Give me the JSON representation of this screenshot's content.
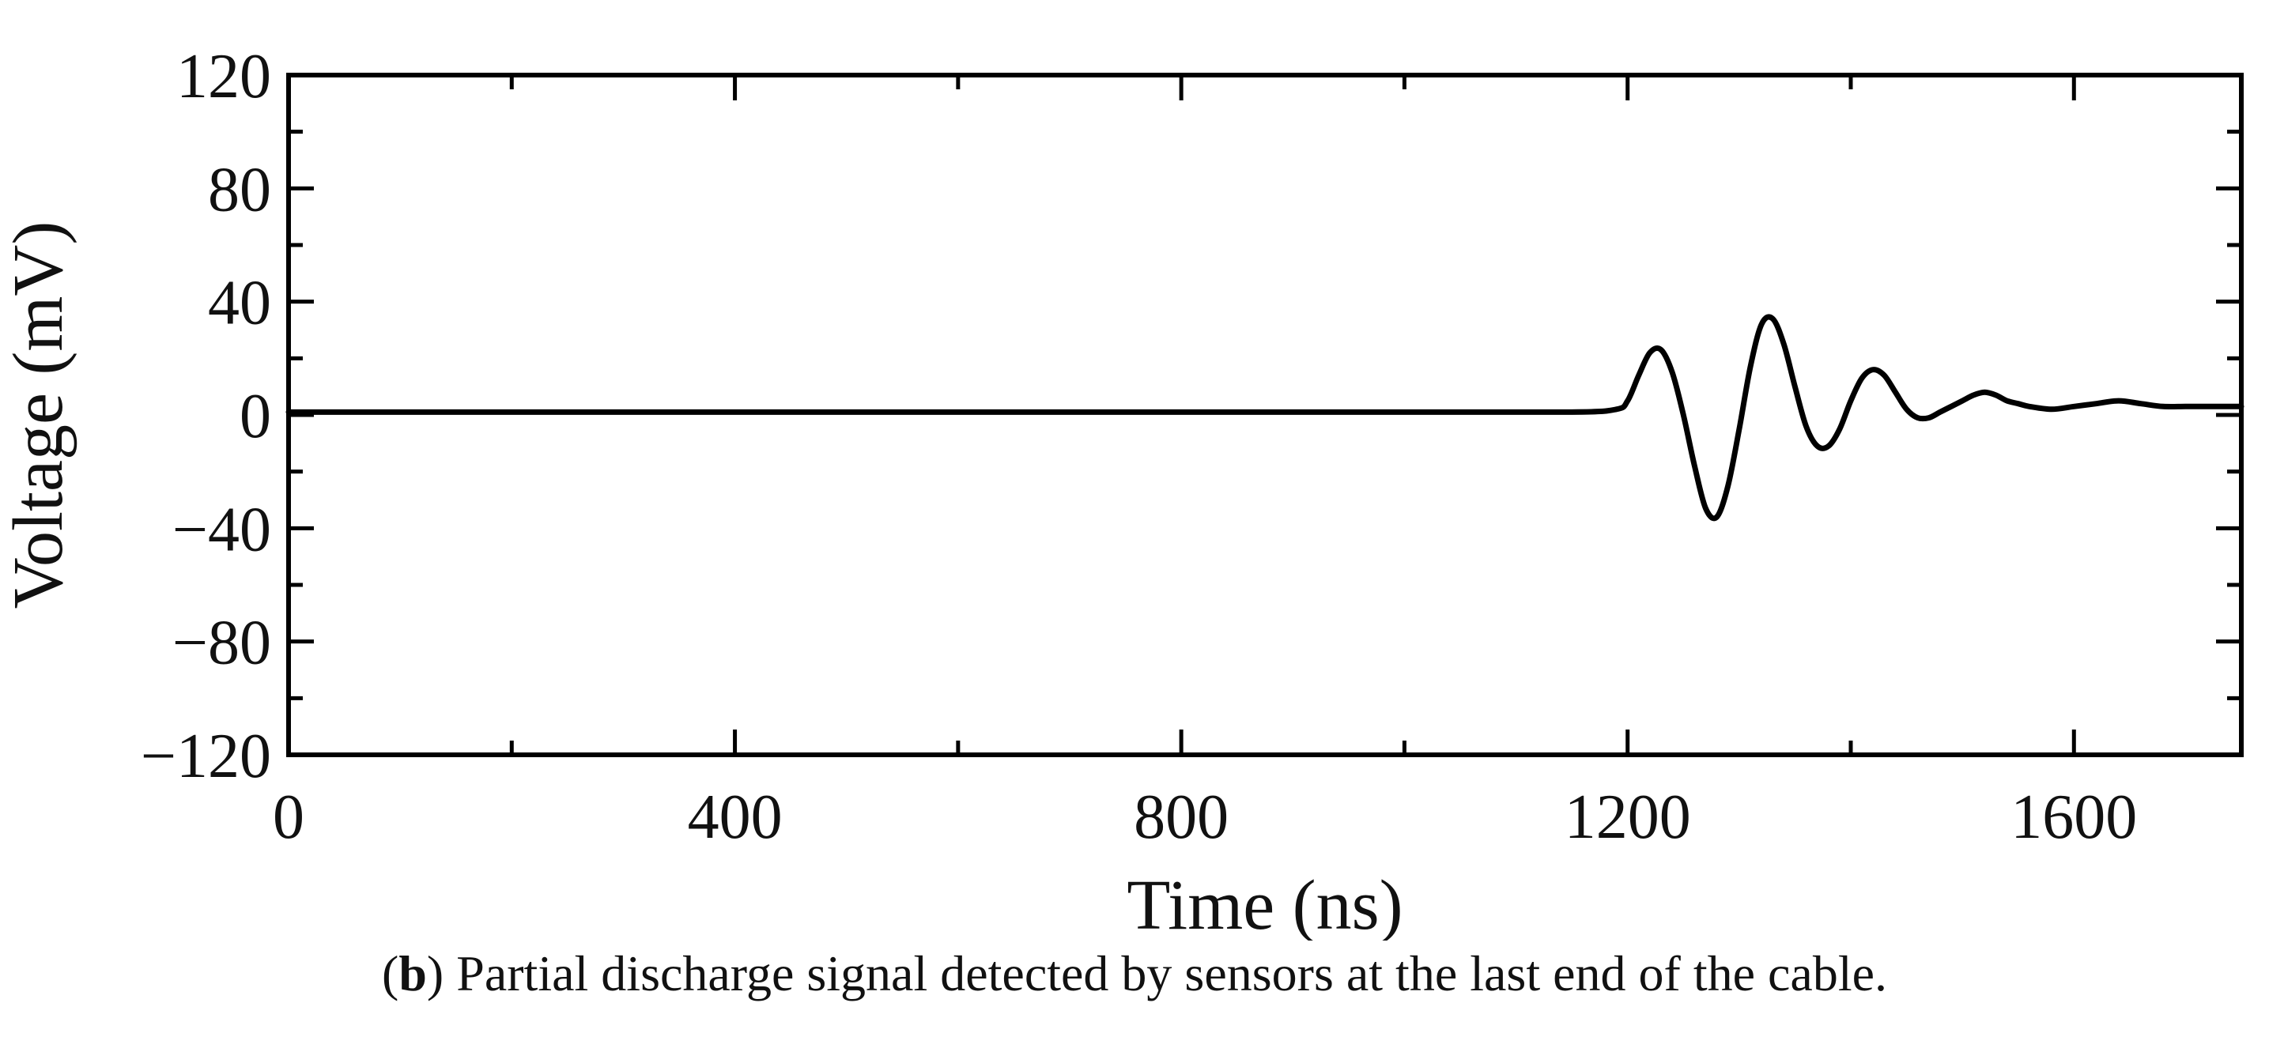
{
  "caption": {
    "label_open": "(",
    "label": "b",
    "label_close": ")",
    "text": " Partial discharge signal detected by sensors at the last end of the cable."
  },
  "chart_data": {
    "type": "line",
    "xlabel": "Time (ns)",
    "ylabel": "Voltage (mV)",
    "xlim": [
      0,
      1750
    ],
    "ylim": [
      -120,
      120
    ],
    "x_ticks": [
      0,
      400,
      800,
      1200,
      1600
    ],
    "x_tick_labels": [
      "0",
      "400",
      "800",
      "1200",
      "1600"
    ],
    "y_ticks": [
      120,
      80,
      40,
      0,
      -40,
      -80,
      -120
    ],
    "y_tick_labels": [
      "120",
      "80",
      "40",
      "0",
      "−40",
      "−80",
      "−120"
    ],
    "grid": false,
    "series": [
      {
        "color": "#000000",
        "x": [
          0,
          200,
          400,
          600,
          800,
          1000,
          1150,
          1190,
          1200,
          1210,
          1220,
          1230,
          1240,
          1250,
          1260,
          1270,
          1280,
          1290,
          1300,
          1310,
          1320,
          1330,
          1340,
          1350,
          1360,
          1370,
          1380,
          1390,
          1400,
          1410,
          1420,
          1430,
          1440,
          1450,
          1460,
          1470,
          1480,
          1490,
          1500,
          1510,
          1520,
          1530,
          1540,
          1550,
          1560,
          1580,
          1600,
          1620,
          1640,
          1660,
          1680,
          1700,
          1720,
          1750
        ],
        "y": [
          1,
          1,
          1,
          1,
          1,
          1,
          1,
          2,
          5,
          14,
          22,
          23,
          15,
          0,
          -18,
          -33,
          -36,
          -25,
          -5,
          17,
          32,
          34,
          25,
          10,
          -4,
          -11,
          -11,
          -5,
          5,
          13,
          16,
          14,
          8,
          2,
          -1,
          -1,
          1,
          3,
          5,
          7,
          8,
          7,
          5,
          4,
          3,
          2,
          3,
          4,
          5,
          4,
          3,
          3,
          3,
          3
        ]
      }
    ]
  }
}
